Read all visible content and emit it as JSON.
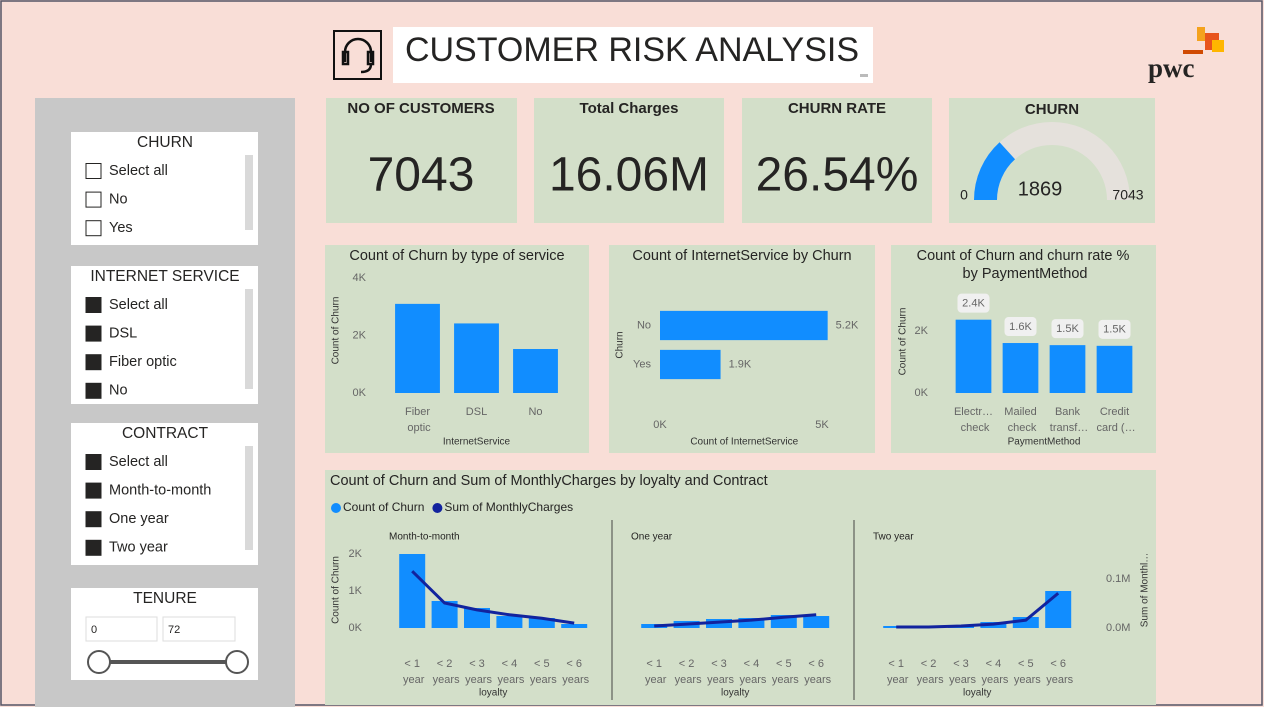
{
  "header": {
    "title": "CUSTOMER RISK ANALYSIS",
    "logo": "pwc"
  },
  "slicers": [
    {
      "title": "CHURN",
      "items": [
        "Select all",
        "No",
        "Yes"
      ],
      "checked": false
    },
    {
      "title": "INTERNET SERVICE",
      "items": [
        "Select all",
        "DSL",
        "Fiber optic",
        "No"
      ],
      "checked": true
    },
    {
      "title": "CONTRACT",
      "items": [
        "Select all",
        "Month-to-month",
        "One year",
        "Two year"
      ],
      "checked": true
    }
  ],
  "tenure": {
    "title": "TENURE",
    "min": 0,
    "max": 72
  },
  "cards": [
    {
      "title": "NO OF CUSTOMERS",
      "value": "7043"
    },
    {
      "title": "Total Charges",
      "value": "16.06M"
    },
    {
      "title": "CHURN RATE",
      "value": "26.54%"
    }
  ],
  "chart_data": [
    {
      "type": "bar",
      "title": "Count of Churn by type of service",
      "x_label": "InternetService",
      "y_label": "Count of Churn",
      "categories": [
        "Fiber optic",
        "DSL",
        "No"
      ],
      "values": [
        3100,
        2420,
        1530
      ],
      "color": "#118dff",
      "ylim": [
        0,
        4000
      ],
      "yticks": [
        {
          "value": 0,
          "label": "0K"
        },
        {
          "value": 2000,
          "label": "2K"
        },
        {
          "value": 4000,
          "label": "4K"
        }
      ]
    },
    {
      "type": "bar",
      "orientation": "horizontal",
      "title": "Count of InternetService by Churn",
      "x_label": "Count of InternetService",
      "y_label": "Churn",
      "categories": [
        "No",
        "Yes"
      ],
      "values": [
        5174,
        1869
      ],
      "value_labels": [
        "5.2K",
        "1.9K"
      ],
      "color": "#118dff",
      "xlim": [
        0,
        5200
      ],
      "xticks": [
        {
          "value": 0,
          "label": "0K"
        },
        {
          "value": 5000,
          "label": "5K"
        }
      ]
    },
    {
      "type": "bar",
      "title": "Count of Churn and churn rate % by PaymentMethod",
      "x_label": "PaymentMethod",
      "y_label": "Count of Churn",
      "categories": [
        "Electr… check",
        "Mailed check",
        "Bank transf…",
        "Credit card (…"
      ],
      "values": [
        2365,
        1612,
        1544,
        1522
      ],
      "value_labels": [
        "2.4K",
        "1.6K",
        "1.5K",
        "1.5K"
      ],
      "color": "#118dff",
      "ylim": [
        0,
        3000
      ],
      "yticks": [
        {
          "value": 0,
          "label": "0K"
        },
        {
          "value": 2000,
          "label": "2K"
        }
      ]
    },
    {
      "type": "combo",
      "title": "Count of Churn and Sum of MonthlyCharges by loyalty and Contract",
      "x_label": "loyalty",
      "y_label": "Count of Churn",
      "y2_label": "Sum of Monthl…",
      "panels": [
        "Month-to-month",
        "One year",
        "Two year"
      ],
      "categories": [
        "< 1 year",
        "< 2 years",
        "< 3 years",
        "< 4 years",
        "< 5 years",
        "< 6 years"
      ],
      "series": [
        {
          "name": "Count of Churn",
          "color": "#118dff",
          "values": [
            [
              2000,
              730,
              540,
              324,
              270,
              108
            ],
            [
              108,
              190,
              243,
              270,
              351,
              324
            ],
            [
              54,
              27,
              54,
              162,
              297,
              1000
            ]
          ]
        },
        {
          "name": "Sum of MonthlyCharges",
          "color": "#12239e",
          "axis": "y2",
          "values": [
            [
              116000,
              51000,
              37000,
              27000,
              20000,
              10000
            ],
            [
              4000,
              8000,
              12000,
              16000,
              22000,
              27000
            ],
            [
              2000,
              2000,
              4000,
              8000,
              16000,
              71000
            ]
          ]
        }
      ],
      "ylim": [
        0,
        2250
      ],
      "yticks": [
        {
          "value": 0,
          "label": "0K"
        },
        {
          "value": 1000,
          "label": "1K"
        },
        {
          "value": 2000,
          "label": "2K"
        }
      ],
      "y2lim": [
        0,
        170000
      ],
      "y2ticks": [
        {
          "value": 0,
          "label": "0.0M"
        },
        {
          "value": 100000,
          "label": "0.1M"
        }
      ]
    },
    {
      "type": "gauge",
      "title": "CHURN",
      "value": 1869,
      "min": 0,
      "max": 7043,
      "color": "#118dff"
    }
  ]
}
